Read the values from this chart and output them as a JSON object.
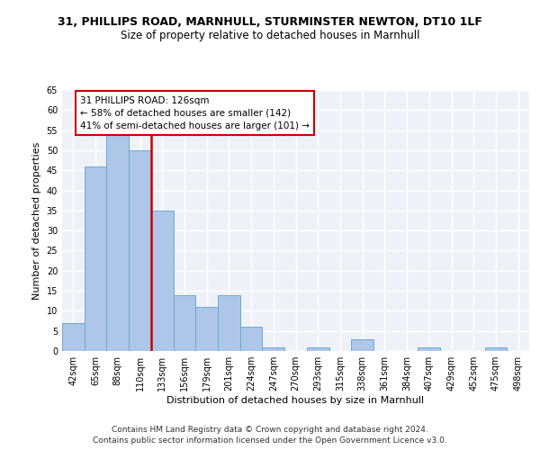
{
  "title1": "31, PHILLIPS ROAD, MARNHULL, STURMINSTER NEWTON, DT10 1LF",
  "title2": "Size of property relative to detached houses in Marnhull",
  "xlabel": "Distribution of detached houses by size in Marnhull",
  "ylabel": "Number of detached properties",
  "footer1": "Contains HM Land Registry data © Crown copyright and database right 2024.",
  "footer2": "Contains public sector information licensed under the Open Government Licence v3.0.",
  "bins": [
    "42sqm",
    "65sqm",
    "88sqm",
    "110sqm",
    "133sqm",
    "156sqm",
    "179sqm",
    "201sqm",
    "224sqm",
    "247sqm",
    "270sqm",
    "293sqm",
    "315sqm",
    "338sqm",
    "361sqm",
    "384sqm",
    "407sqm",
    "429sqm",
    "452sqm",
    "475sqm",
    "498sqm"
  ],
  "values": [
    7,
    46,
    54,
    50,
    35,
    14,
    11,
    14,
    6,
    1,
    0,
    1,
    0,
    3,
    0,
    0,
    1,
    0,
    0,
    1,
    0
  ],
  "bar_color": "#aec6e8",
  "bar_edge_color": "#6aaad4",
  "vline_color": "#cc0000",
  "annotation_text": "31 PHILLIPS ROAD: 126sqm\n← 58% of detached houses are smaller (142)\n41% of semi-detached houses are larger (101) →",
  "annotation_box_color": "white",
  "annotation_box_edge_color": "#cc0000",
  "ylim": [
    0,
    65
  ],
  "yticks": [
    0,
    5,
    10,
    15,
    20,
    25,
    30,
    35,
    40,
    45,
    50,
    55,
    60,
    65
  ],
  "bg_color": "#eef2f8",
  "grid_color": "white",
  "title1_fontsize": 9,
  "title2_fontsize": 8.5,
  "xlabel_fontsize": 8,
  "ylabel_fontsize": 8,
  "tick_fontsize": 7,
  "annotation_fontsize": 7.5,
  "footer_fontsize": 6.5
}
